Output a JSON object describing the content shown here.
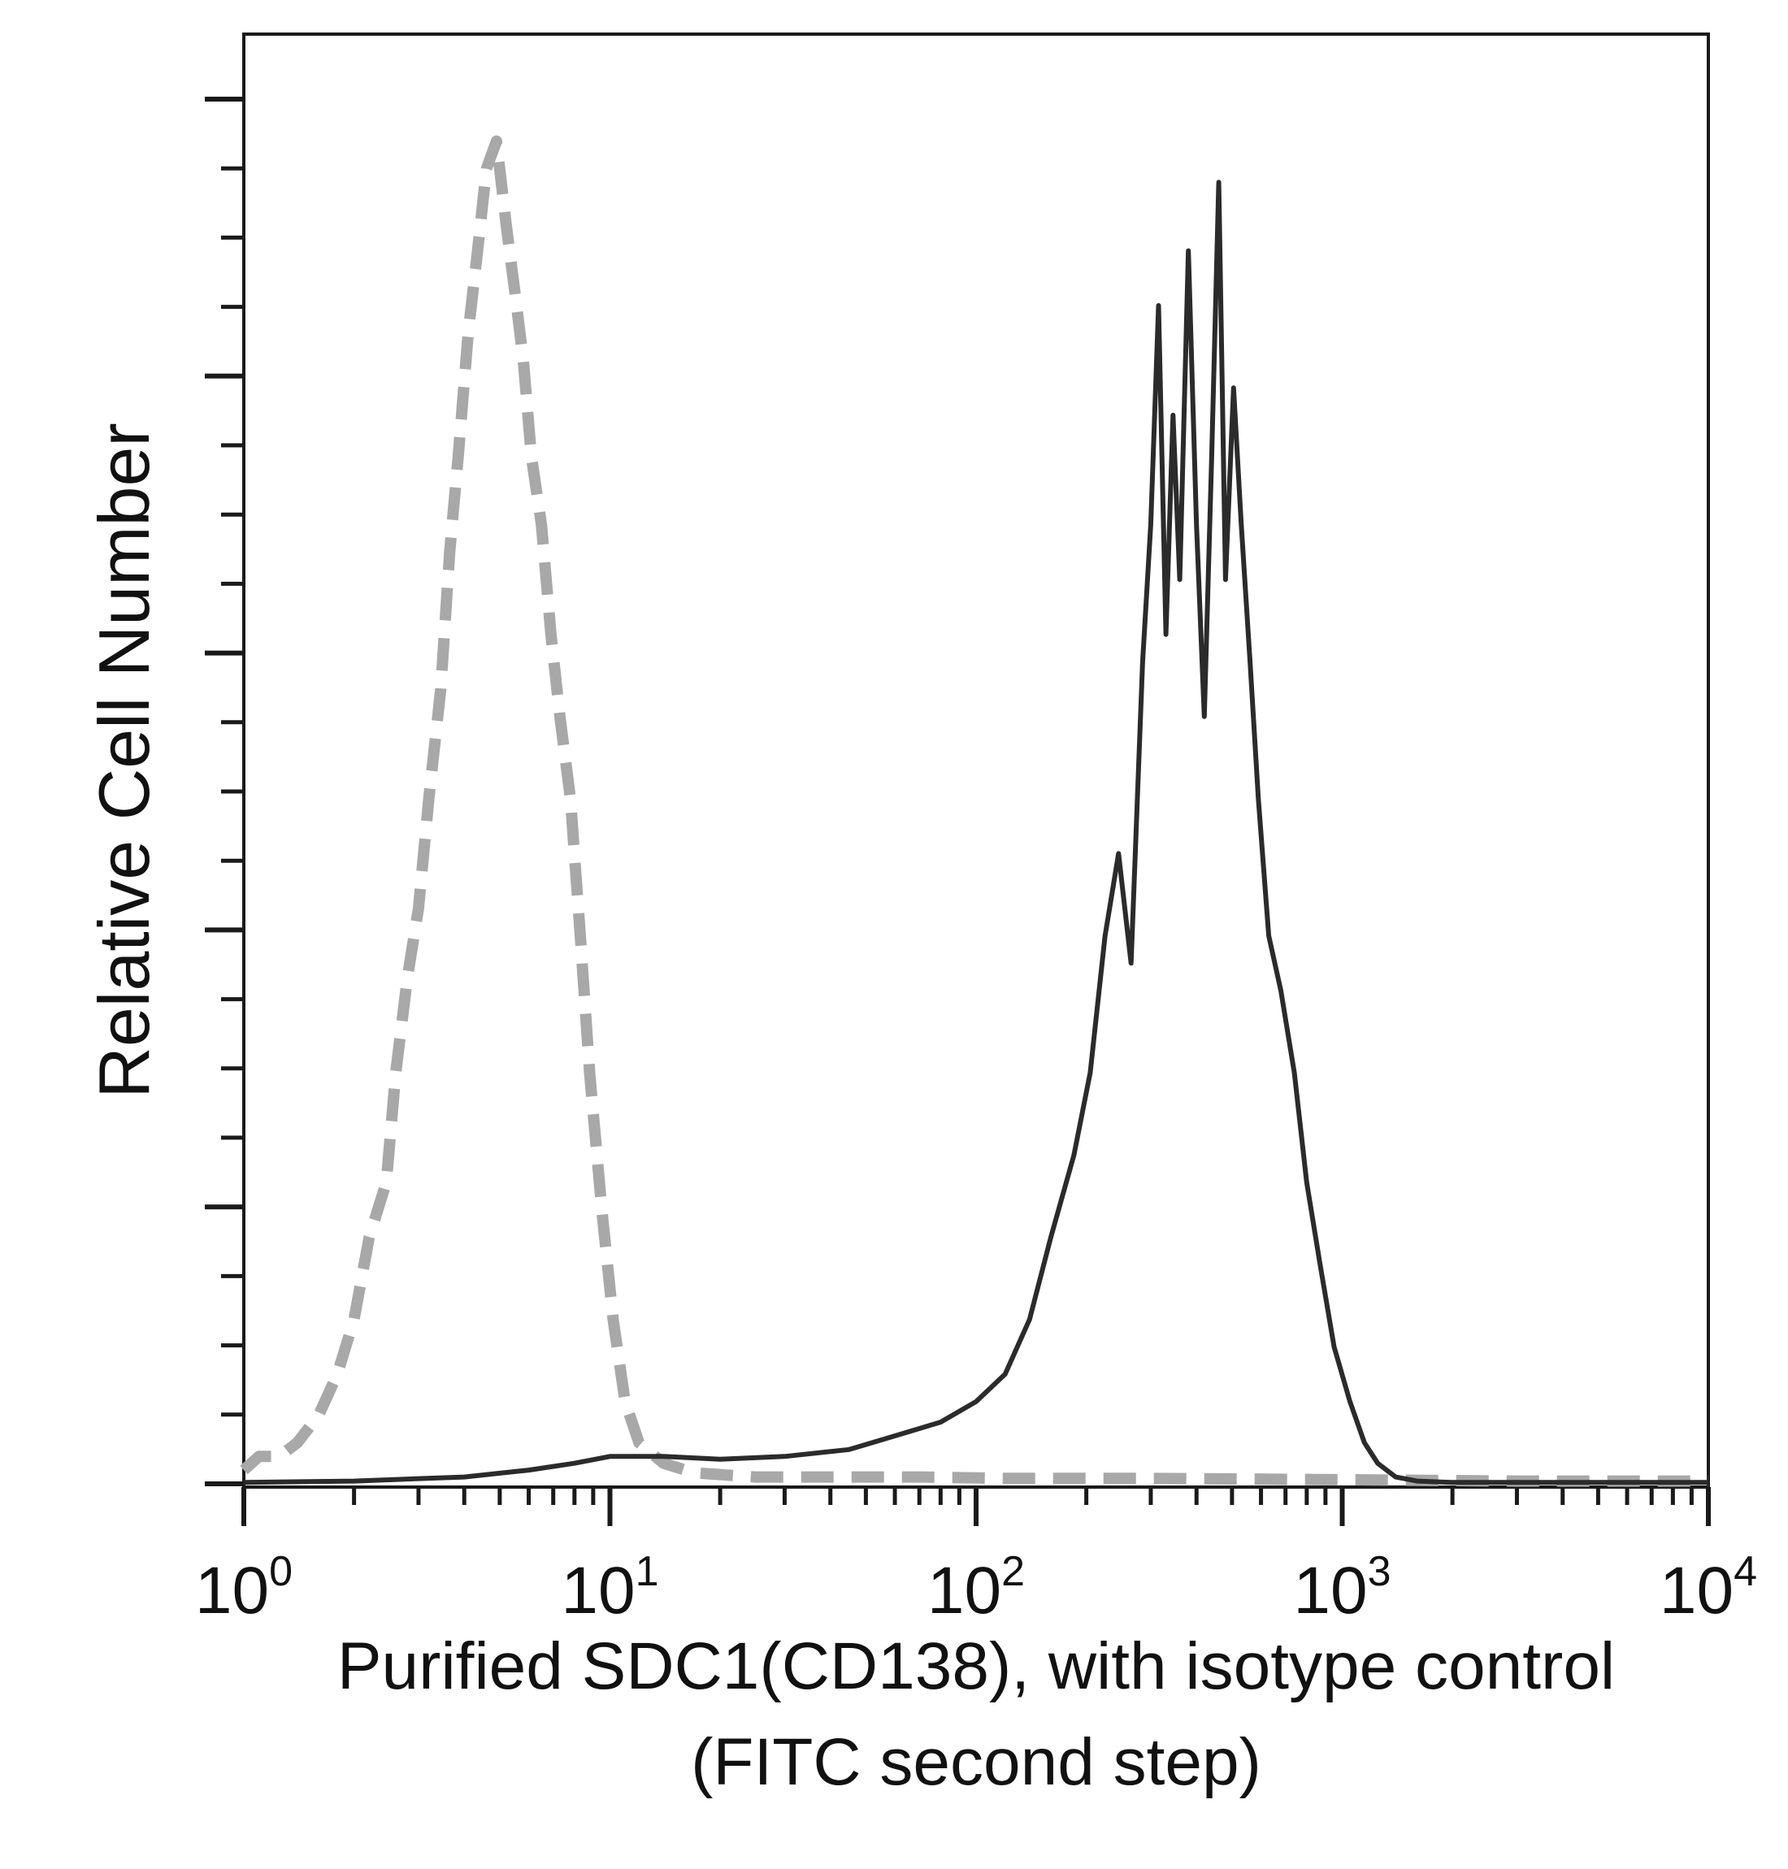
{
  "chart_data": {
    "type": "line",
    "title": "",
    "xlabel_line1": "Purified SDC1(CD138), with isotype control",
    "xlabel_line2": "(FITC second step)",
    "ylabel": "Relative Cell Number",
    "x_scale": "log",
    "xlim": [
      1,
      10000
    ],
    "ylim": [
      0,
      100
    ],
    "x_tick_labels": [
      {
        "base": "10",
        "exp": "0"
      },
      {
        "base": "10",
        "exp": "1"
      },
      {
        "base": "10",
        "exp": "2"
      },
      {
        "base": "10",
        "exp": "3"
      },
      {
        "base": "10",
        "exp": "4"
      }
    ],
    "y_tick_labels_shown": false,
    "grid": false,
    "legend": "none",
    "series": [
      {
        "style": "dashed",
        "color": "#a8a8a8",
        "x": [
          1.0,
          1.1,
          1.25,
          1.4,
          1.6,
          1.8,
          2.0,
          2.2,
          2.45,
          2.6,
          2.8,
          3.0,
          3.2,
          3.45,
          3.65,
          3.85,
          4.1,
          4.35,
          4.6,
          4.9,
          5.2,
          5.5,
          5.8,
          6.1,
          6.5,
          6.9,
          7.3,
          7.8,
          8.3,
          8.8,
          9.5,
          10.2,
          11.0,
          12.0,
          14.0,
          17.0,
          25.0,
          40.0,
          70.0,
          120.0,
          300.0,
          1000.0,
          3000.0,
          10000.0
        ],
        "y": [
          1,
          2,
          2,
          3,
          5,
          8,
          12,
          18,
          22,
          30,
          37,
          42,
          50,
          58,
          68,
          75,
          84,
          90,
          96,
          98,
          92,
          87,
          82,
          75,
          70,
          62,
          56,
          50,
          40,
          30,
          20,
          12,
          6,
          3,
          1.5,
          0.8,
          0.5,
          0.5,
          0.5,
          0.4,
          0.4,
          0.3,
          0.2,
          0.2
        ]
      },
      {
        "style": "solid",
        "color": "#2b2b2b",
        "x": [
          1.0,
          2.0,
          4.0,
          6.0,
          8.0,
          10.0,
          14.0,
          20.0,
          30.0,
          45.0,
          60.0,
          80.0,
          100.0,
          120.0,
          140.0,
          160.0,
          185.0,
          205.0,
          225.0,
          245.0,
          265.0,
          285.0,
          300.0,
          315.0,
          330.0,
          345.0,
          360.0,
          380.0,
          400.0,
          420.0,
          440.0,
          460.0,
          480.0,
          505.0,
          530.0,
          560.0,
          590.0,
          630.0,
          680.0,
          740.0,
          800.0,
          870.0,
          950.0,
          1050.0,
          1150.0,
          1250.0,
          1400.0,
          1600.0,
          2000.0,
          3000.0,
          5000.0,
          10000.0
        ],
        "y": [
          0.1,
          0.2,
          0.5,
          1.0,
          1.5,
          2.0,
          2.0,
          1.8,
          2.0,
          2.5,
          3.5,
          4.5,
          6.0,
          8.0,
          12.0,
          18.0,
          24.0,
          30.0,
          40.0,
          46.0,
          38.0,
          60.0,
          70.0,
          86.0,
          62.0,
          78.0,
          66.0,
          90.0,
          70.0,
          56.0,
          75.0,
          95.0,
          66.0,
          80.0,
          70.0,
          60.0,
          50.0,
          40.0,
          36.0,
          30.0,
          22.0,
          16.0,
          10.0,
          6.0,
          3.0,
          1.5,
          0.5,
          0.2,
          0.1,
          0.1,
          0.1,
          0.1
        ]
      }
    ]
  }
}
